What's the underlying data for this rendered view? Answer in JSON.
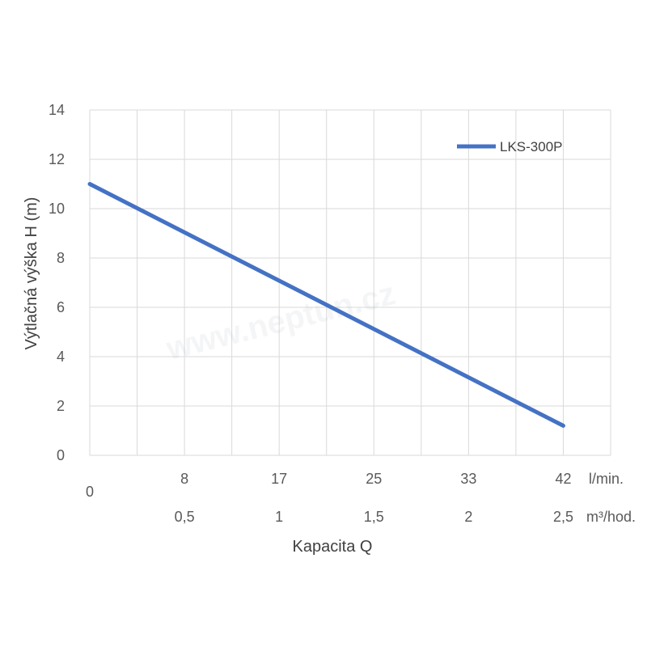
{
  "chart_data": {
    "type": "line",
    "ylabel": "Výtlačná výška H (m)",
    "xlabel": "Kapacita Q",
    "ylim": [
      0,
      14
    ],
    "yticks": [
      "0",
      "2",
      "4",
      "6",
      "8",
      "10",
      "12",
      "14"
    ],
    "xlim": [
      0,
      2.75
    ],
    "x_origin_label": "0",
    "x_ticks_lmin": [
      "8",
      "17",
      "25",
      "33",
      "42"
    ],
    "x_ticks_m3h": [
      "0,5",
      "1",
      "1,5",
      "2",
      "2,5"
    ],
    "x_unit_lmin": "l/min.",
    "x_unit_m3h": "m³/hod.",
    "grid": true,
    "legend_position": "top-right",
    "series": [
      {
        "name": "LKS-300P",
        "color": "#4472C4",
        "x_m3h": [
          0,
          2.5
        ],
        "y": [
          11,
          1.2
        ]
      }
    ],
    "watermark": "www.neptun.cz"
  }
}
